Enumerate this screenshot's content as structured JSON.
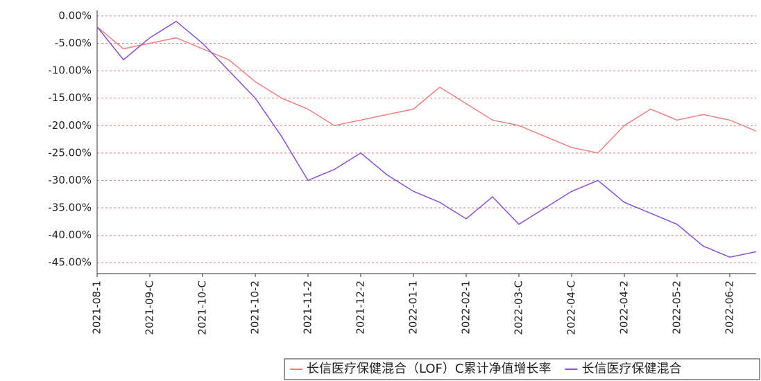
{
  "chart_data": {
    "type": "line",
    "categories": [
      "2021-08-1",
      null,
      "2021-09-C",
      null,
      "2021-10-C",
      null,
      "2021-10-2",
      null,
      "2021-11-2",
      null,
      "2021-12-2",
      null,
      "2022-01-1",
      null,
      "2022-02-1",
      null,
      "2022-03-C",
      null,
      "2022-04-C",
      null,
      "2022-04-2",
      null,
      "2022-05-2",
      null,
      "2022-06-2",
      null
    ],
    "series": [
      {
        "name": "长信医疗保健混合（LOF）C累计净值增长率",
        "color": "#f08080",
        "values": [
          -2,
          -6,
          -5,
          -4,
          -6,
          -8,
          -12,
          -15,
          -17,
          -20,
          -19,
          -18,
          -17,
          -13,
          -16,
          -19,
          -20,
          -22,
          -24,
          -25,
          -20,
          -17,
          -19,
          -18,
          -19,
          -21
        ]
      },
      {
        "name": "长信医疗保健混合",
        "color": "#8a4fd8",
        "values": [
          -2,
          -8,
          -4,
          -1,
          -5,
          -10,
          -15,
          -22,
          -30,
          -28,
          -25,
          -29,
          -32,
          -34,
          -37,
          -33,
          -38,
          -35,
          -32,
          -30,
          -34,
          -36,
          -38,
          -42,
          -44,
          -43
        ]
      }
    ],
    "ylim": [
      -47,
      1
    ],
    "yticks": [
      {
        "value": 0,
        "label": "0.00%"
      },
      {
        "value": -5,
        "label": "-5.00%"
      },
      {
        "value": -10,
        "label": "-10.00%"
      },
      {
        "value": -15,
        "label": "-15.00%"
      },
      {
        "value": -20,
        "label": "-20.00%"
      },
      {
        "value": -25,
        "label": "-25.00%"
      },
      {
        "value": -30,
        "label": "-30.00%"
      },
      {
        "value": -35,
        "label": "-35.00%"
      },
      {
        "value": -40,
        "label": "-40.00%"
      },
      {
        "value": -45,
        "label": "-45.00%"
      }
    ],
    "grid": true
  }
}
